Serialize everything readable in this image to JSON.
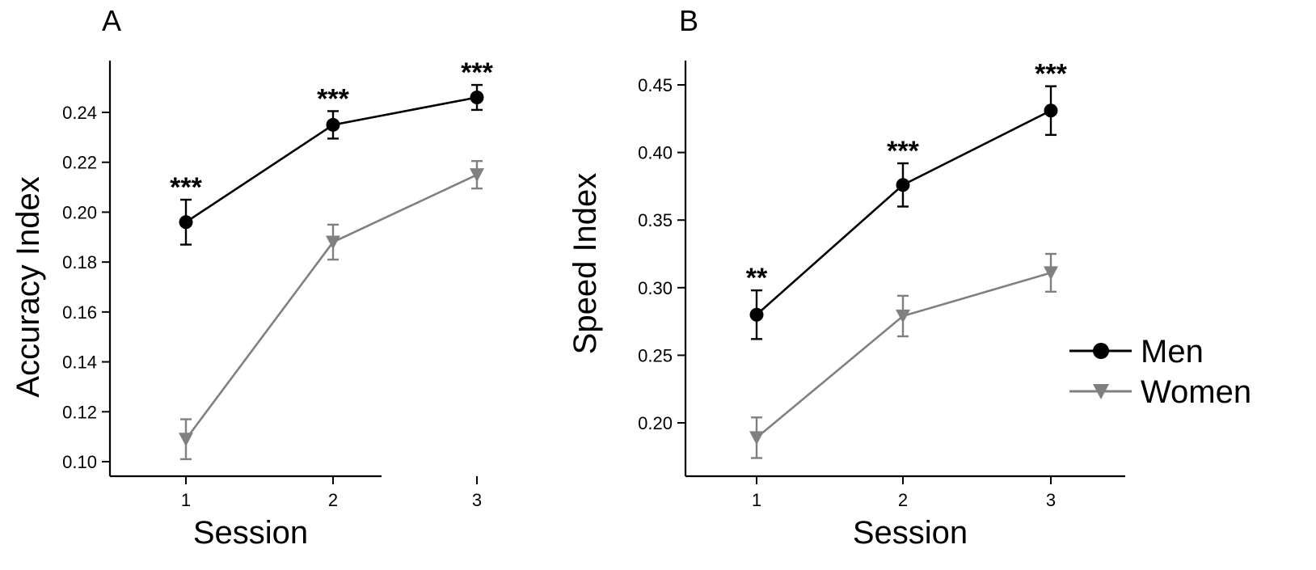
{
  "chart_data": [
    {
      "panel": "A",
      "type": "line",
      "xlabel": "Session",
      "ylabel": "Accuracy Index",
      "categories": [
        "1",
        "2",
        "3"
      ],
      "ylim": [
        0.095,
        0.255
      ],
      "yticks": [
        0.1,
        0.12,
        0.14,
        0.16,
        0.18,
        0.2,
        0.22,
        0.24
      ],
      "ytick_labels": [
        "0.10",
        "0.12",
        "0.14",
        "0.16",
        "0.18",
        "0.20",
        "0.22",
        "0.24"
      ],
      "series": [
        {
          "name": "Men",
          "marker": "circle",
          "color": "#000000",
          "values": [
            0.196,
            0.235,
            0.246
          ],
          "errors": [
            0.009,
            0.0055,
            0.005
          ]
        },
        {
          "name": "Women",
          "marker": "triangle-down",
          "color": "#808080",
          "values": [
            0.109,
            0.188,
            0.215
          ],
          "errors": [
            0.008,
            0.007,
            0.0055
          ]
        }
      ],
      "significance": [
        "***",
        "***",
        "***"
      ]
    },
    {
      "panel": "B",
      "type": "line",
      "xlabel": "Session",
      "ylabel": "Speed Index",
      "categories": [
        "1",
        "2",
        "3"
      ],
      "ylim": [
        0.17,
        0.465
      ],
      "yticks": [
        0.2,
        0.25,
        0.3,
        0.35,
        0.4,
        0.45
      ],
      "ytick_labels": [
        "0.20",
        "0.25",
        "0.30",
        "0.35",
        "0.40",
        "0.45"
      ],
      "series": [
        {
          "name": "Men",
          "marker": "circle",
          "color": "#000000",
          "values": [
            0.28,
            0.376,
            0.431
          ],
          "errors": [
            0.018,
            0.016,
            0.018
          ]
        },
        {
          "name": "Women",
          "marker": "triangle-down",
          "color": "#808080",
          "values": [
            0.189,
            0.279,
            0.311
          ],
          "errors": [
            0.015,
            0.015,
            0.014
          ]
        }
      ],
      "significance": [
        "**",
        "***",
        "***"
      ]
    }
  ],
  "legend": {
    "position": "right",
    "items": [
      {
        "label": "Men",
        "marker": "circle",
        "color": "#000000"
      },
      {
        "label": "Women",
        "marker": "triangle-down",
        "color": "#808080"
      }
    ]
  }
}
